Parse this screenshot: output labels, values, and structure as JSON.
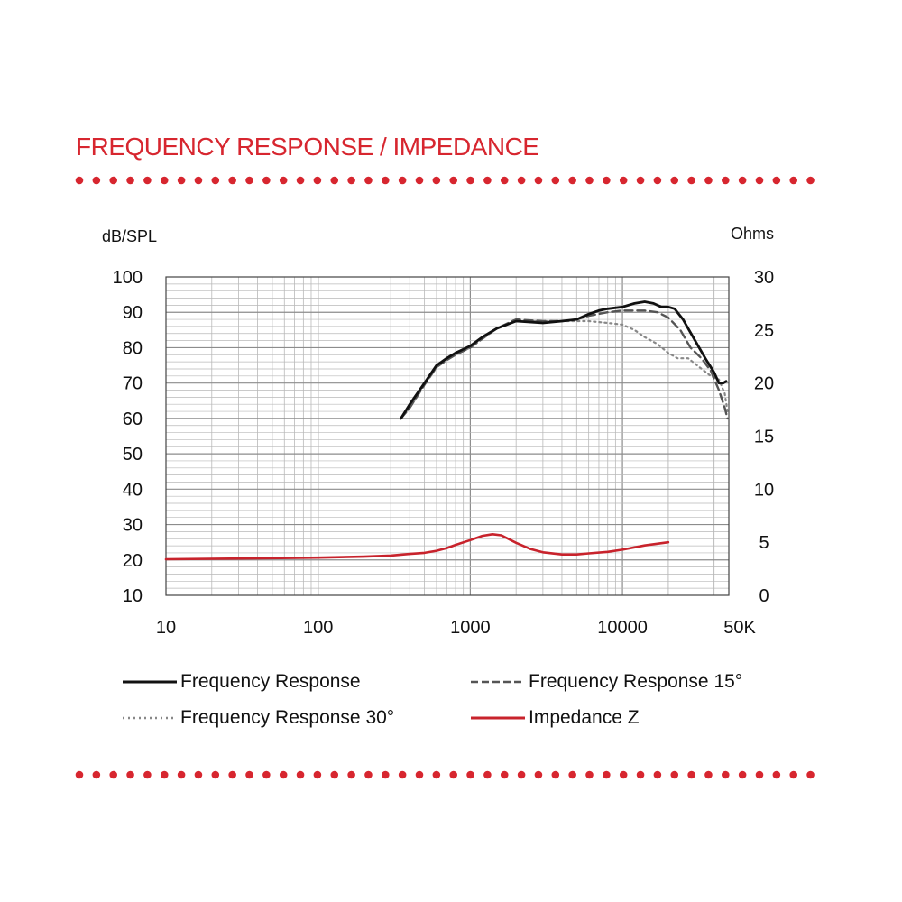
{
  "colors": {
    "accent": "#d7262f",
    "grid": "#b9b9b9",
    "axis": "#444444"
  },
  "heading": "FREQUENCY RESPONSE / IMPEDANCE",
  "chart_data": {
    "type": "line",
    "title": "FREQUENCY RESPONSE / IMPEDANCE",
    "xscale": "log",
    "xlim": [
      10,
      50000
    ],
    "x_ticks": [
      10,
      100,
      1000,
      10000,
      50000
    ],
    "x_tick_labels": [
      "10",
      "100",
      "1000",
      "10000",
      "50K"
    ],
    "ylabel_left": "dB/SPL",
    "ylim_left": [
      10,
      100
    ],
    "y_ticks_left": [
      "100",
      "90",
      "80",
      "70",
      "60",
      "50",
      "40",
      "30",
      "20",
      "10"
    ],
    "ylabel_right": "Ohms",
    "ylim_right": [
      0,
      30
    ],
    "y_ticks_right": [
      "30",
      "25",
      "20",
      "15",
      "10",
      "5",
      "0"
    ],
    "grid": true,
    "legend_position": "bottom",
    "series": [
      {
        "name": "Frequency Response",
        "axis": "left",
        "color": "#111111",
        "style": "solid",
        "points": [
          [
            350,
            60
          ],
          [
            400,
            64
          ],
          [
            500,
            70
          ],
          [
            600,
            75
          ],
          [
            700,
            77
          ],
          [
            800,
            78.5
          ],
          [
            1000,
            80.5
          ],
          [
            1200,
            83
          ],
          [
            1500,
            85.5
          ],
          [
            2000,
            87.5
          ],
          [
            3000,
            87
          ],
          [
            4000,
            87.5
          ],
          [
            5000,
            88
          ],
          [
            6000,
            89.5
          ],
          [
            7000,
            90.5
          ],
          [
            8000,
            91
          ],
          [
            10000,
            91.5
          ],
          [
            12000,
            92.5
          ],
          [
            14000,
            93
          ],
          [
            16000,
            92.5
          ],
          [
            18000,
            91.5
          ],
          [
            20000,
            91.5
          ],
          [
            22000,
            91
          ],
          [
            25000,
            88
          ],
          [
            30000,
            82
          ],
          [
            35000,
            77
          ],
          [
            40000,
            73
          ],
          [
            43000,
            70
          ],
          [
            46000,
            70
          ],
          [
            48000,
            70.5
          ]
        ]
      },
      {
        "name": "Frequency Response 15°",
        "axis": "left",
        "color": "#555555",
        "style": "dashed",
        "points": [
          [
            350,
            60
          ],
          [
            400,
            63
          ],
          [
            500,
            69.5
          ],
          [
            600,
            74.5
          ],
          [
            700,
            76.5
          ],
          [
            800,
            78
          ],
          [
            1000,
            80
          ],
          [
            1200,
            82.5
          ],
          [
            1500,
            85.5
          ],
          [
            2000,
            88
          ],
          [
            3000,
            87.5
          ],
          [
            4000,
            87.5
          ],
          [
            5000,
            88
          ],
          [
            6000,
            89
          ],
          [
            8000,
            90
          ],
          [
            10000,
            90.5
          ],
          [
            14000,
            90.5
          ],
          [
            17000,
            90
          ],
          [
            20000,
            88.5
          ],
          [
            24000,
            85
          ],
          [
            28000,
            80
          ],
          [
            33000,
            77
          ],
          [
            38000,
            73.5
          ],
          [
            43000,
            68
          ],
          [
            47000,
            63
          ],
          [
            49000,
            60
          ]
        ]
      },
      {
        "name": "Frequency Response 30°",
        "axis": "left",
        "color": "#888888",
        "style": "dotted",
        "points": [
          [
            350,
            60
          ],
          [
            400,
            63
          ],
          [
            500,
            69.5
          ],
          [
            600,
            74.5
          ],
          [
            700,
            76.5
          ],
          [
            800,
            78
          ],
          [
            1000,
            80
          ],
          [
            1200,
            82.5
          ],
          [
            1500,
            85.5
          ],
          [
            2000,
            87.5
          ],
          [
            3000,
            87.5
          ],
          [
            4000,
            87.5
          ],
          [
            5000,
            87.5
          ],
          [
            6000,
            87.5
          ],
          [
            8000,
            87
          ],
          [
            10000,
            86.5
          ],
          [
            12000,
            85
          ],
          [
            14000,
            83
          ],
          [
            17000,
            81
          ],
          [
            20000,
            78.5
          ],
          [
            23000,
            77
          ],
          [
            27000,
            77
          ],
          [
            32000,
            74.5
          ],
          [
            38000,
            72
          ],
          [
            43000,
            71
          ],
          [
            47000,
            67
          ],
          [
            49000,
            62
          ]
        ]
      },
      {
        "name": "Impedance Z",
        "axis": "right",
        "color": "#c8232c",
        "style": "solid",
        "points": [
          [
            10,
            3.4
          ],
          [
            50,
            3.5
          ],
          [
            100,
            3.55
          ],
          [
            200,
            3.65
          ],
          [
            300,
            3.75
          ],
          [
            400,
            3.9
          ],
          [
            500,
            4.0
          ],
          [
            600,
            4.2
          ],
          [
            700,
            4.45
          ],
          [
            800,
            4.75
          ],
          [
            1000,
            5.2
          ],
          [
            1200,
            5.6
          ],
          [
            1400,
            5.75
          ],
          [
            1600,
            5.65
          ],
          [
            2000,
            4.95
          ],
          [
            2500,
            4.35
          ],
          [
            3000,
            4.05
          ],
          [
            4000,
            3.85
          ],
          [
            5000,
            3.85
          ],
          [
            6000,
            3.95
          ],
          [
            8000,
            4.1
          ],
          [
            10000,
            4.3
          ],
          [
            14000,
            4.7
          ],
          [
            20000,
            5.0
          ]
        ]
      }
    ]
  }
}
